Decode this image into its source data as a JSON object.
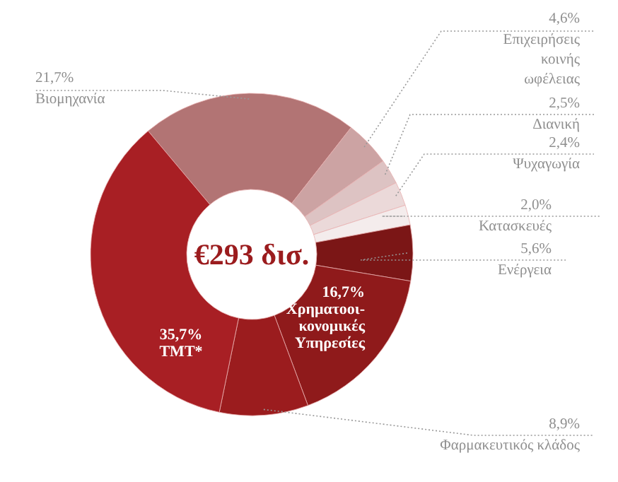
{
  "chart_data": {
    "type": "donut",
    "categories": [
      "Βιομηχανία",
      "Επιχειρήσεις κοινής ωφέλειας",
      "Διανική",
      "Ψυχαγωγία",
      "Κατασκευές",
      "Ενέργεια",
      "Χρηματοοι-κονομικές Υπηρεσίες",
      "Φαρμακευτικός κλάδος",
      "TMT*"
    ],
    "values": [
      21.7,
      4.6,
      2.5,
      2.4,
      2.0,
      5.6,
      16.7,
      8.9,
      35.7
    ],
    "value_labels": [
      "21,7%",
      "4,6%",
      "2,5%",
      "2,4%",
      "2,0%",
      "5,6%",
      "16,7%",
      "8,9%",
      "35,7%"
    ],
    "colors": [
      "#b27474",
      "#cca3a3",
      "#ddc3c3",
      "#ebd9d9",
      "#f4ecec",
      "#7b1616",
      "#8f1a1b",
      "#9b1c1e",
      "#a81f24"
    ],
    "annotations": [
      "€293 δισ."
    ]
  }
}
